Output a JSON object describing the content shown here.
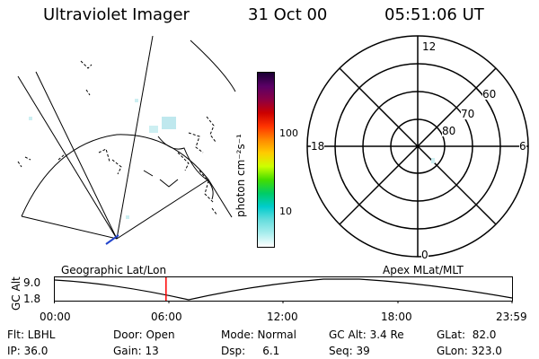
{
  "header": {
    "title": "Ultraviolet Imager",
    "date": "31 Oct 00",
    "time": "05:51:06 UT"
  },
  "colorbar": {
    "unit_label": "photon cm⁻²s⁻¹",
    "ticks": [
      "100",
      "10"
    ],
    "gradient": [
      "#1a0033",
      "#5a0066",
      "#8b0044",
      "#cc0000",
      "#ff3300",
      "#ff8800",
      "#ffcc00",
      "#ccff00",
      "#44dd00",
      "#00cc66",
      "#00cccc",
      "#66dddd",
      "#aaeeee",
      "#ffffff"
    ]
  },
  "polar_plot": {
    "mlt_labels": {
      "top": "12",
      "bottom": "0",
      "left": "18",
      "right": "6"
    },
    "lat_labels": [
      "60",
      "70",
      "80"
    ]
  },
  "timeline": {
    "left_label": "Geographic Lat/Lon",
    "right_label": "Apex MLat/MLT",
    "yaxis_label": "GC Alt",
    "y_ticks": [
      "9.0",
      "1.8"
    ],
    "x_ticks": [
      "00:00",
      "06:00",
      "12:00",
      "18:00",
      "23:59"
    ],
    "current_marker_hour": 5.85,
    "marker_color": "#ff0000"
  },
  "info": {
    "flt": "Flt: LBHL",
    "ip": "IP: 36.0",
    "door": "Door: Open",
    "gain": "Gain: 13",
    "mode": "Mode: Normal",
    "dsp": "Dsp:     6.1",
    "gc_alt": "GC Alt: 3.4 Re",
    "seq": "Seq: 39",
    "glat": "GLat:  82.0",
    "glon": "GLon: 323.0"
  }
}
